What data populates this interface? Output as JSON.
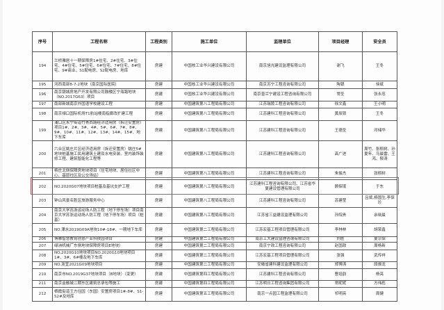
{
  "headers": [
    "序号",
    "工程名称",
    "工程类别",
    "施工单位",
    "监理单位",
    "项目经理",
    "安全员"
  ],
  "rows": [
    [
      "194",
      "兰桥雅居十一期保障房1#住宅、2#住宅、3#住宅、4#住宅、5#住宅、6#住宅、7#住宅、8#住宅、9#商业、S1配电房、S2配电房、地库",
      "房建",
      "中国核工业华兴建设有限公司",
      "南京旭光建设监理有限公司",
      "谢飞",
      "王冬"
    ],
    [
      "195",
      "河西南部8-7-2地块（南京国际医院）",
      "房建",
      "中国核工业华兴建设有限公司",
      "南京苏宁工程咨询有限公司",
      "陶银",
      "徐斌"
    ],
    [
      "196",
      "南京银城房地产开发有限公司鼓楼区宁海路地块（NO.2017G63）项目",
      "房建",
      "中国核工业华兴建设有限公司",
      "南京普兰宁建设工程咨询有限公司",
      "常圣",
      "张永忠"
    ],
    [
      "197",
      "南部新城南京外国语学校建设工程",
      "房建",
      "中国建筑第八工程局有限公司",
      "江苏瑞陵工程咨询有限公司",
      "徐文鑫",
      "王小明"
    ],
    [
      "198",
      "南京禄口国际机场T1航站楼南指廊改扩建工程",
      "房建",
      "中国建筑第八工程局有限公司",
      "江苏建科工程咨询有限公司",
      "黄辰锁",
      "王冬"
    ],
    [
      "199",
      "浦口区永宁街道竹青西路经济适用房（拆迁安置房）项目1#、2#、3#、4#、5#、6#、7#、8#、9#、10#、11#、12#、13#、14#、15#、地下车库",
      "房建",
      "中国建筑第八工程局有限公司",
      "江苏建科工程咨询有限公司",
      "王德圣",
      "邓储华"
    ],
    [
      "200",
      "六合区姚庄片区经济适用房（拆迁安置房）姚庄5#地块桩基施工民用建筑土建及水电安装、室内装饰装修工程、建筑智能化工程等",
      "房建",
      "中国建筑第八工程局有限公司",
      "江苏建科工程咨询有限公司",
      "高广进",
      "周竹、张栩树、孙夏年、马晨雷、王鸿、郁涛"
    ],
    [
      "201",
      "杨庄北侧保障房地块项目（住宅地块、居住社区中心、基层社区及公交场站）",
      "房建",
      "中国建筑第八工程局有限公司",
      "江苏建科工程咨询有限公司",
      "朱俊杰",
      "张栩树"
    ],
    [
      "202",
      "NO.2020G07地块项目桩基及基坑支护工程",
      "房建",
      "中国建筑第八工程局有限公司",
      "江苏建科工程咨询有限公司、江苏省华夏建设管理有限公司",
      "顾探珉",
      "于东"
    ],
    [
      "203",
      "钟山风景名胜区旅游服务中心",
      "房建",
      "中国建筑第八工程局有限公司",
      "江苏建科工程咨询有限公司",
      "苏建莹",
      "吕斌,杨国生,李保珍"
    ],
    [
      "204",
      "南京大学苏浙运动场人防工程（地下停车场）项目南京大学苏浙运动场人防工程（地下停车场）项目（桩基）",
      "房建",
      "中国建筑第八工程局有限公司",
      "江苏省三益建设监理有限公司",
      "孙院贵",
      "余晓晨"
    ],
    [
      "205",
      "NO.溧水2019G09A地块10#-18#、一期地下车库",
      "房建",
      "中国建筑第二工程局有限公司",
      "江苏宏基工程项目管理有限公司",
      "李林林",
      "胡荣鑫"
    ],
    [
      "206",
      "博雅智慧教育创意产业科技园项目",
      "房建",
      "中国建筑第二工程局有限公司",
      "南京工大建设监理咨询有限公司",
      "刘胜",
      "夏宗保"
    ],
    [
      "207",
      "绿洲机械厂东侧地块保障房项目E地块）",
      "房建",
      "中国建筑第二工程局有限公司",
      "南京宁政工程咨询有限公司",
      "赵国政",
      "周杨新"
    ],
    [
      "208",
      "NO.2020G10地块项目NO.2020G10地块项目1#、3#、6#楼及地下车库",
      "房建",
      "中国建筑第二工程局有限公司",
      "江苏宏基工程项目管理有限公司",
      "张强",
      "武传祥"
    ],
    [
      "209",
      "NO.浙宜2021G09地块项目",
      "房建",
      "中国建筑第二工程局有限公司",
      "安徽省建科建设监理有限公司",
      "郑博涛",
      "段振龙"
    ],
    [
      "210",
      "南京市NO.2019G37地块项目（B地块）（变更）",
      "房建",
      "中国建筑第四工程局有限公司",
      "江苏建科工程咨询有限公司",
      "曹培韵",
      "杨亮"
    ],
    [
      "211",
      "南京金融城二期东区建筑总承包等施工",
      "房建",
      "中国建筑第四工程局有限公司",
      "江苏明日工程咨询集团有限公司",
      "常昵昵",
      "方伟彪"
    ],
    [
      "212",
      "栖霞街道王方住园（东园）安置房项目1#-8#、S1-S2#及地库",
      "房建",
      "中国建筑第五工程局有限公司",
      "南京一点园工程监理有限公司",
      "祁明亮",
      "周健"
    ]
  ],
  "highlight_row": "202",
  "colors": {
    "highlight": "#e0454a",
    "grid": "#555555"
  }
}
